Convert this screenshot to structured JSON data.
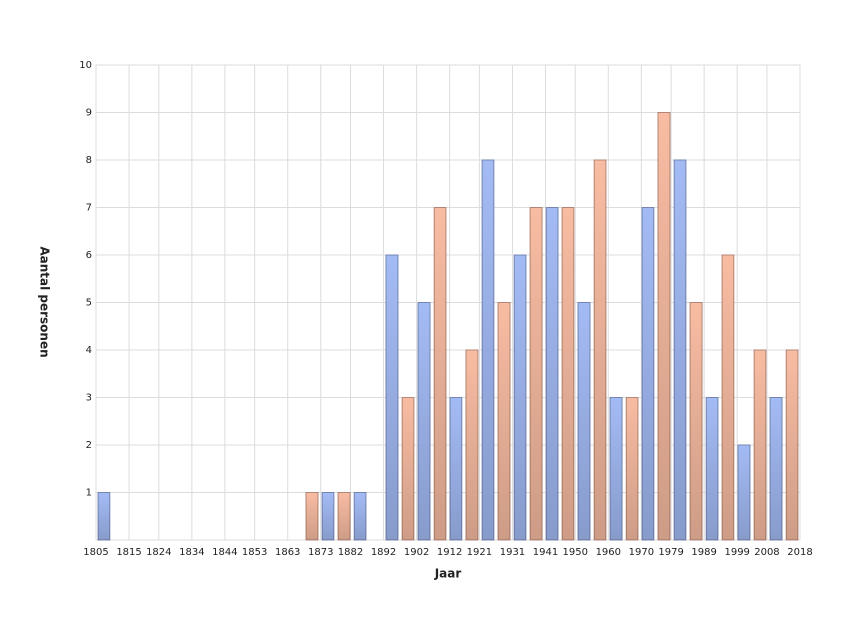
{
  "chart_data": {
    "type": "histogram",
    "x_label": "Jaar",
    "y_label": "Aantal personen",
    "bins": [
      1805.0,
      1809.8,
      1814.7,
      1819.5,
      1824.4,
      1829.2,
      1834.0,
      1838.9,
      1843.7,
      1848.6,
      1853.4,
      1858.3,
      1863.1,
      1867.9,
      1872.8,
      1877.6,
      1882.5,
      1887.3,
      1892.1,
      1897.0,
      1901.8,
      1906.7,
      1911.5,
      1916.3,
      1921.2,
      1926.0,
      1930.9,
      1935.7,
      1940.6,
      1945.4,
      1950.2,
      1955.1,
      1959.9,
      1964.8,
      1969.6,
      1974.4,
      1979.3,
      1984.1,
      1989.0,
      1993.8,
      1998.6,
      2003.5,
      2008.3,
      2013.2,
      2018.0
    ],
    "values": [
      1,
      0,
      0,
      0,
      0,
      0,
      0,
      0,
      0,
      0,
      0,
      0,
      0,
      1,
      1,
      1,
      1,
      0,
      6,
      3,
      5,
      7,
      3,
      4,
      8,
      5,
      6,
      7,
      7,
      7,
      5,
      8,
      3,
      3,
      7,
      9,
      8,
      5,
      3,
      6,
      2,
      4,
      3,
      4
    ],
    "colors": [
      "#a3bbf5",
      "#f8bca2"
    ],
    "xlim": [
      1805,
      2018
    ],
    "xticks": [
      1805,
      1815,
      1824,
      1834,
      1844,
      1853,
      1863,
      1873,
      1882,
      1892,
      1902,
      1912,
      1921,
      1931,
      1941,
      1950,
      1960,
      1970,
      1979,
      1989,
      1999,
      2008,
      2018
    ],
    "ylim": [
      0,
      10
    ],
    "yticks": [
      1,
      2,
      3,
      4,
      5,
      6,
      7,
      8,
      9,
      10
    ],
    "grid": true
  }
}
